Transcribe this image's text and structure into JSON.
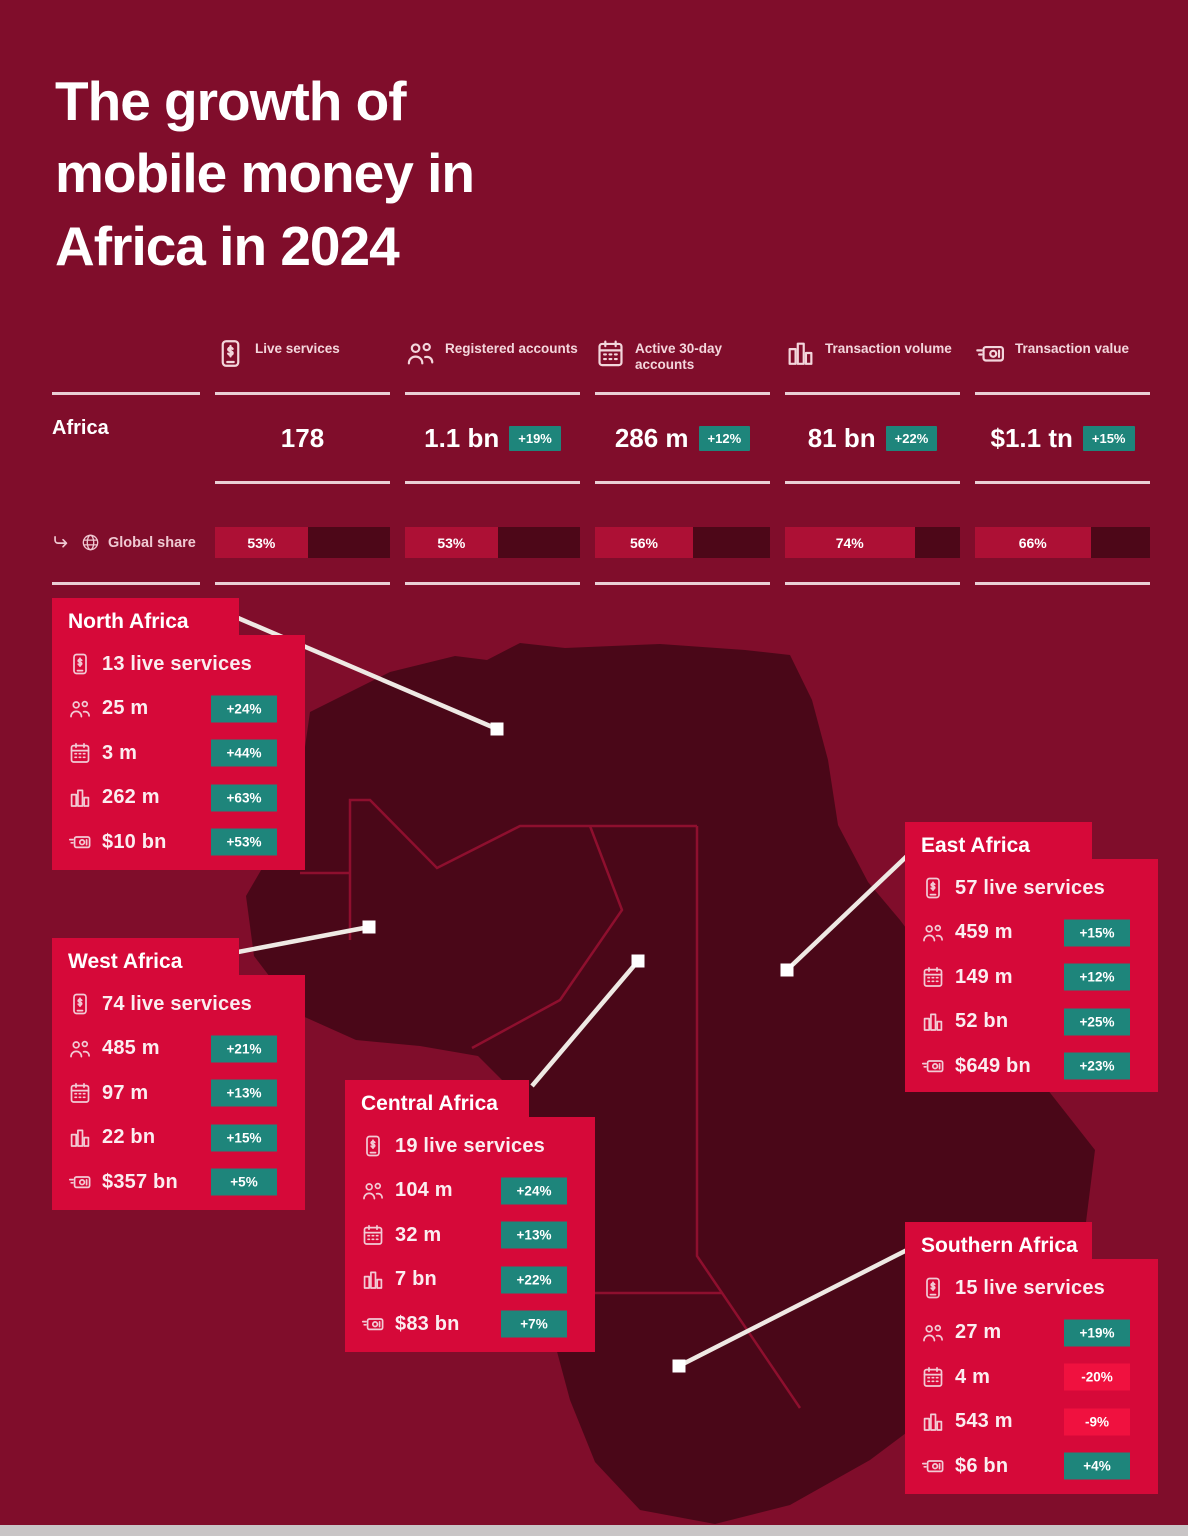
{
  "title": "The growth of\nmobile money in\nAfrica in 2024",
  "table": {
    "region_label": "Africa",
    "share_label": "Global share",
    "columns": [
      {
        "label": "Live services",
        "icon": "phone-dollar-icon",
        "value": "178",
        "change": null,
        "share": "53%",
        "share_pct": 53
      },
      {
        "label": "Registered accounts",
        "icon": "people-icon",
        "value": "1.1 bn",
        "change": "+19%",
        "share": "53%",
        "share_pct": 53
      },
      {
        "label": "Active 30-day accounts",
        "icon": "calendar-icon",
        "value": "286 m",
        "change": "+12%",
        "share": "56%",
        "share_pct": 56
      },
      {
        "label": "Transaction volume",
        "icon": "bar-chart-icon",
        "value": "81 bn",
        "change": "+22%",
        "share": "74%",
        "share_pct": 74
      },
      {
        "label": "Transaction value",
        "icon": "banknote-icon",
        "value": "$1.1 tn",
        "change": "+15%",
        "share": "66%",
        "share_pct": 66
      }
    ]
  },
  "regions": [
    {
      "name": "North Africa",
      "live_services": "13 live services",
      "stats": [
        {
          "icon": "people-icon",
          "value": "25 m",
          "change": "+24%",
          "trend": "up"
        },
        {
          "icon": "calendar-icon",
          "value": "3 m",
          "change": "+44%",
          "trend": "up"
        },
        {
          "icon": "bar-chart-icon",
          "value": "262 m",
          "change": "+63%",
          "trend": "up"
        },
        {
          "icon": "banknote-icon",
          "value": "$10 bn",
          "change": "+53%",
          "trend": "up"
        }
      ]
    },
    {
      "name": "West Africa",
      "live_services": "74 live services",
      "stats": [
        {
          "icon": "people-icon",
          "value": "485 m",
          "change": "+21%",
          "trend": "up"
        },
        {
          "icon": "calendar-icon",
          "value": "97 m",
          "change": "+13%",
          "trend": "up"
        },
        {
          "icon": "bar-chart-icon",
          "value": "22 bn",
          "change": "+15%",
          "trend": "up"
        },
        {
          "icon": "banknote-icon",
          "value": "$357 bn",
          "change": "+5%",
          "trend": "up"
        }
      ]
    },
    {
      "name": "Central Africa",
      "live_services": "19 live services",
      "stats": [
        {
          "icon": "people-icon",
          "value": "104 m",
          "change": "+24%",
          "trend": "up"
        },
        {
          "icon": "calendar-icon",
          "value": "32 m",
          "change": "+13%",
          "trend": "up"
        },
        {
          "icon": "bar-chart-icon",
          "value": "7 bn",
          "change": "+22%",
          "trend": "up"
        },
        {
          "icon": "banknote-icon",
          "value": "$83 bn",
          "change": "+7%",
          "trend": "up"
        }
      ]
    },
    {
      "name": "East Africa",
      "live_services": "57 live services",
      "stats": [
        {
          "icon": "people-icon",
          "value": "459 m",
          "change": "+15%",
          "trend": "up"
        },
        {
          "icon": "calendar-icon",
          "value": "149 m",
          "change": "+12%",
          "trend": "up"
        },
        {
          "icon": "bar-chart-icon",
          "value": "52 bn",
          "change": "+25%",
          "trend": "up"
        },
        {
          "icon": "banknote-icon",
          "value": "$649 bn",
          "change": "+23%",
          "trend": "up"
        }
      ]
    },
    {
      "name": "Southern Africa",
      "live_services": "15 live services",
      "stats": [
        {
          "icon": "people-icon",
          "value": "27 m",
          "change": "+19%",
          "trend": "up"
        },
        {
          "icon": "calendar-icon",
          "value": "4 m",
          "change": "-20%",
          "trend": "down"
        },
        {
          "icon": "bar-chart-icon",
          "value": "543 m",
          "change": "-9%",
          "trend": "down"
        },
        {
          "icon": "banknote-icon",
          "value": "$6 bn",
          "change": "+4%",
          "trend": "up"
        }
      ]
    }
  ],
  "colors": {
    "background": "#800D2B",
    "map": "#4A0718",
    "callout": "#D60939",
    "positive_badge": "#1E857B",
    "negative_badge": "#F0113F",
    "share_fill": "#AD1035",
    "share_track": "#4D0718",
    "bottom_strip": "#C9C5C6"
  },
  "chart_data": {
    "type": "table",
    "title": "The growth of mobile money in Africa in 2024",
    "columns": [
      "Live services",
      "Registered accounts",
      "Active 30-day accounts",
      "Transaction volume",
      "Transaction value"
    ],
    "rows": [
      {
        "name": "Africa",
        "values": [
          "178",
          "1.1 bn (+19%)",
          "286 m (+12%)",
          "81 bn (+22%)",
          "$1.1 tn (+15%)"
        ]
      },
      {
        "name": "Global share",
        "values": [
          "53%",
          "53%",
          "56%",
          "74%",
          "66%"
        ]
      },
      {
        "name": "North Africa",
        "values": [
          "13 live services",
          "25 m (+24%)",
          "3 m (+44%)",
          "262 m (+63%)",
          "$10 bn (+53%)"
        ]
      },
      {
        "name": "West Africa",
        "values": [
          "74 live services",
          "485 m (+21%)",
          "97 m (+13%)",
          "22 bn (+15%)",
          "$357 bn (+5%)"
        ]
      },
      {
        "name": "Central Africa",
        "values": [
          "19 live services",
          "104 m (+24%)",
          "32 m (+13%)",
          "7 bn (+22%)",
          "$83 bn (+7%)"
        ]
      },
      {
        "name": "East Africa",
        "values": [
          "57 live services",
          "459 m (+15%)",
          "149 m (+12%)",
          "52 bn (+25%)",
          "$649 bn (+23%)"
        ]
      },
      {
        "name": "Southern Africa",
        "values": [
          "15 live services",
          "27 m (+19%)",
          "4 m (-20%)",
          "543 m (-9%)",
          "$6 bn (+4%)"
        ]
      }
    ],
    "legend_position": "none",
    "grid": false
  }
}
